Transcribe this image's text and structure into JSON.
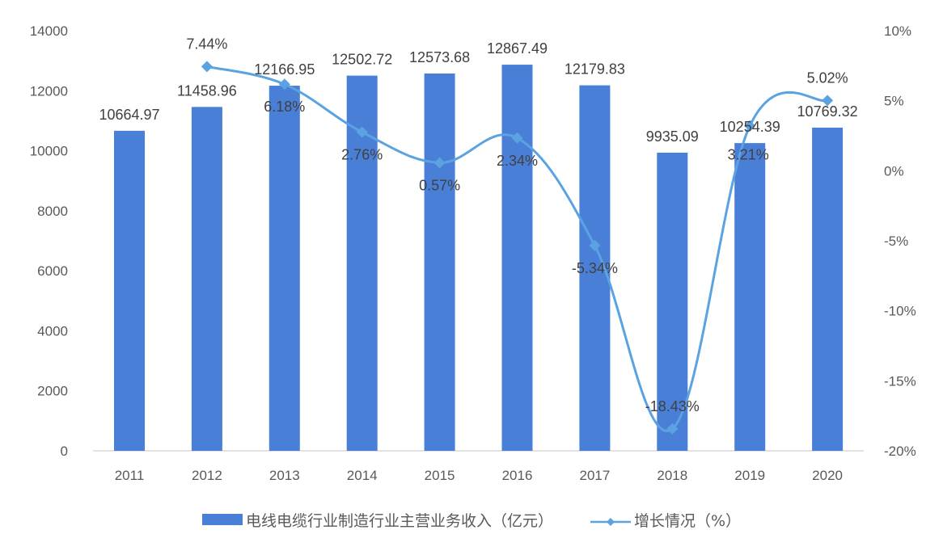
{
  "chart_data": {
    "type": "bar+line",
    "title": "",
    "categories": [
      "2011",
      "2012",
      "2013",
      "2014",
      "2015",
      "2016",
      "2017",
      "2018",
      "2019",
      "2020"
    ],
    "series": [
      {
        "name": "电线电缆行业制造行业主营业务收入（亿元）",
        "type": "bar",
        "axis": "left",
        "color": "#4a7fd8",
        "values": [
          10664.97,
          11458.96,
          12166.95,
          12502.72,
          12573.68,
          12867.49,
          12179.83,
          9935.09,
          10254.39,
          10769.32
        ],
        "labels": [
          "10664.97",
          "11458.96",
          "12166.95",
          "12502.72",
          "12573.68",
          "12867.49",
          "12179.83",
          "9935.09",
          "10254.39",
          "10769.32"
        ]
      },
      {
        "name": "增长情况（%）",
        "type": "line",
        "axis": "right",
        "color": "#5ba3e0",
        "values": [
          null,
          7.44,
          6.18,
          2.76,
          0.57,
          2.34,
          -5.34,
          -18.43,
          3.21,
          5.02
        ],
        "labels": [
          "",
          "7.44%",
          "6.18%",
          "2.76%",
          "0.57%",
          "2.34%",
          "-5.34%",
          "-18.43%",
          "3.21%",
          "5.02%"
        ]
      }
    ],
    "left_axis": {
      "ticks": [
        "0",
        "2000",
        "4000",
        "6000",
        "8000",
        "10000",
        "12000",
        "14000"
      ],
      "ylim": [
        0,
        14000
      ]
    },
    "right_axis": {
      "ticks": [
        "-20%",
        "-15%",
        "-10%",
        "-5%",
        "0%",
        "5%",
        "10%"
      ],
      "ylim": [
        -20,
        10
      ]
    },
    "xlabel": "",
    "ylabel": "",
    "grid": false,
    "legend_position": "bottom"
  },
  "legend": {
    "bar_label": "电线电缆行业制造行业主营业务收入（亿元）",
    "line_label": "增长情况（%）"
  }
}
